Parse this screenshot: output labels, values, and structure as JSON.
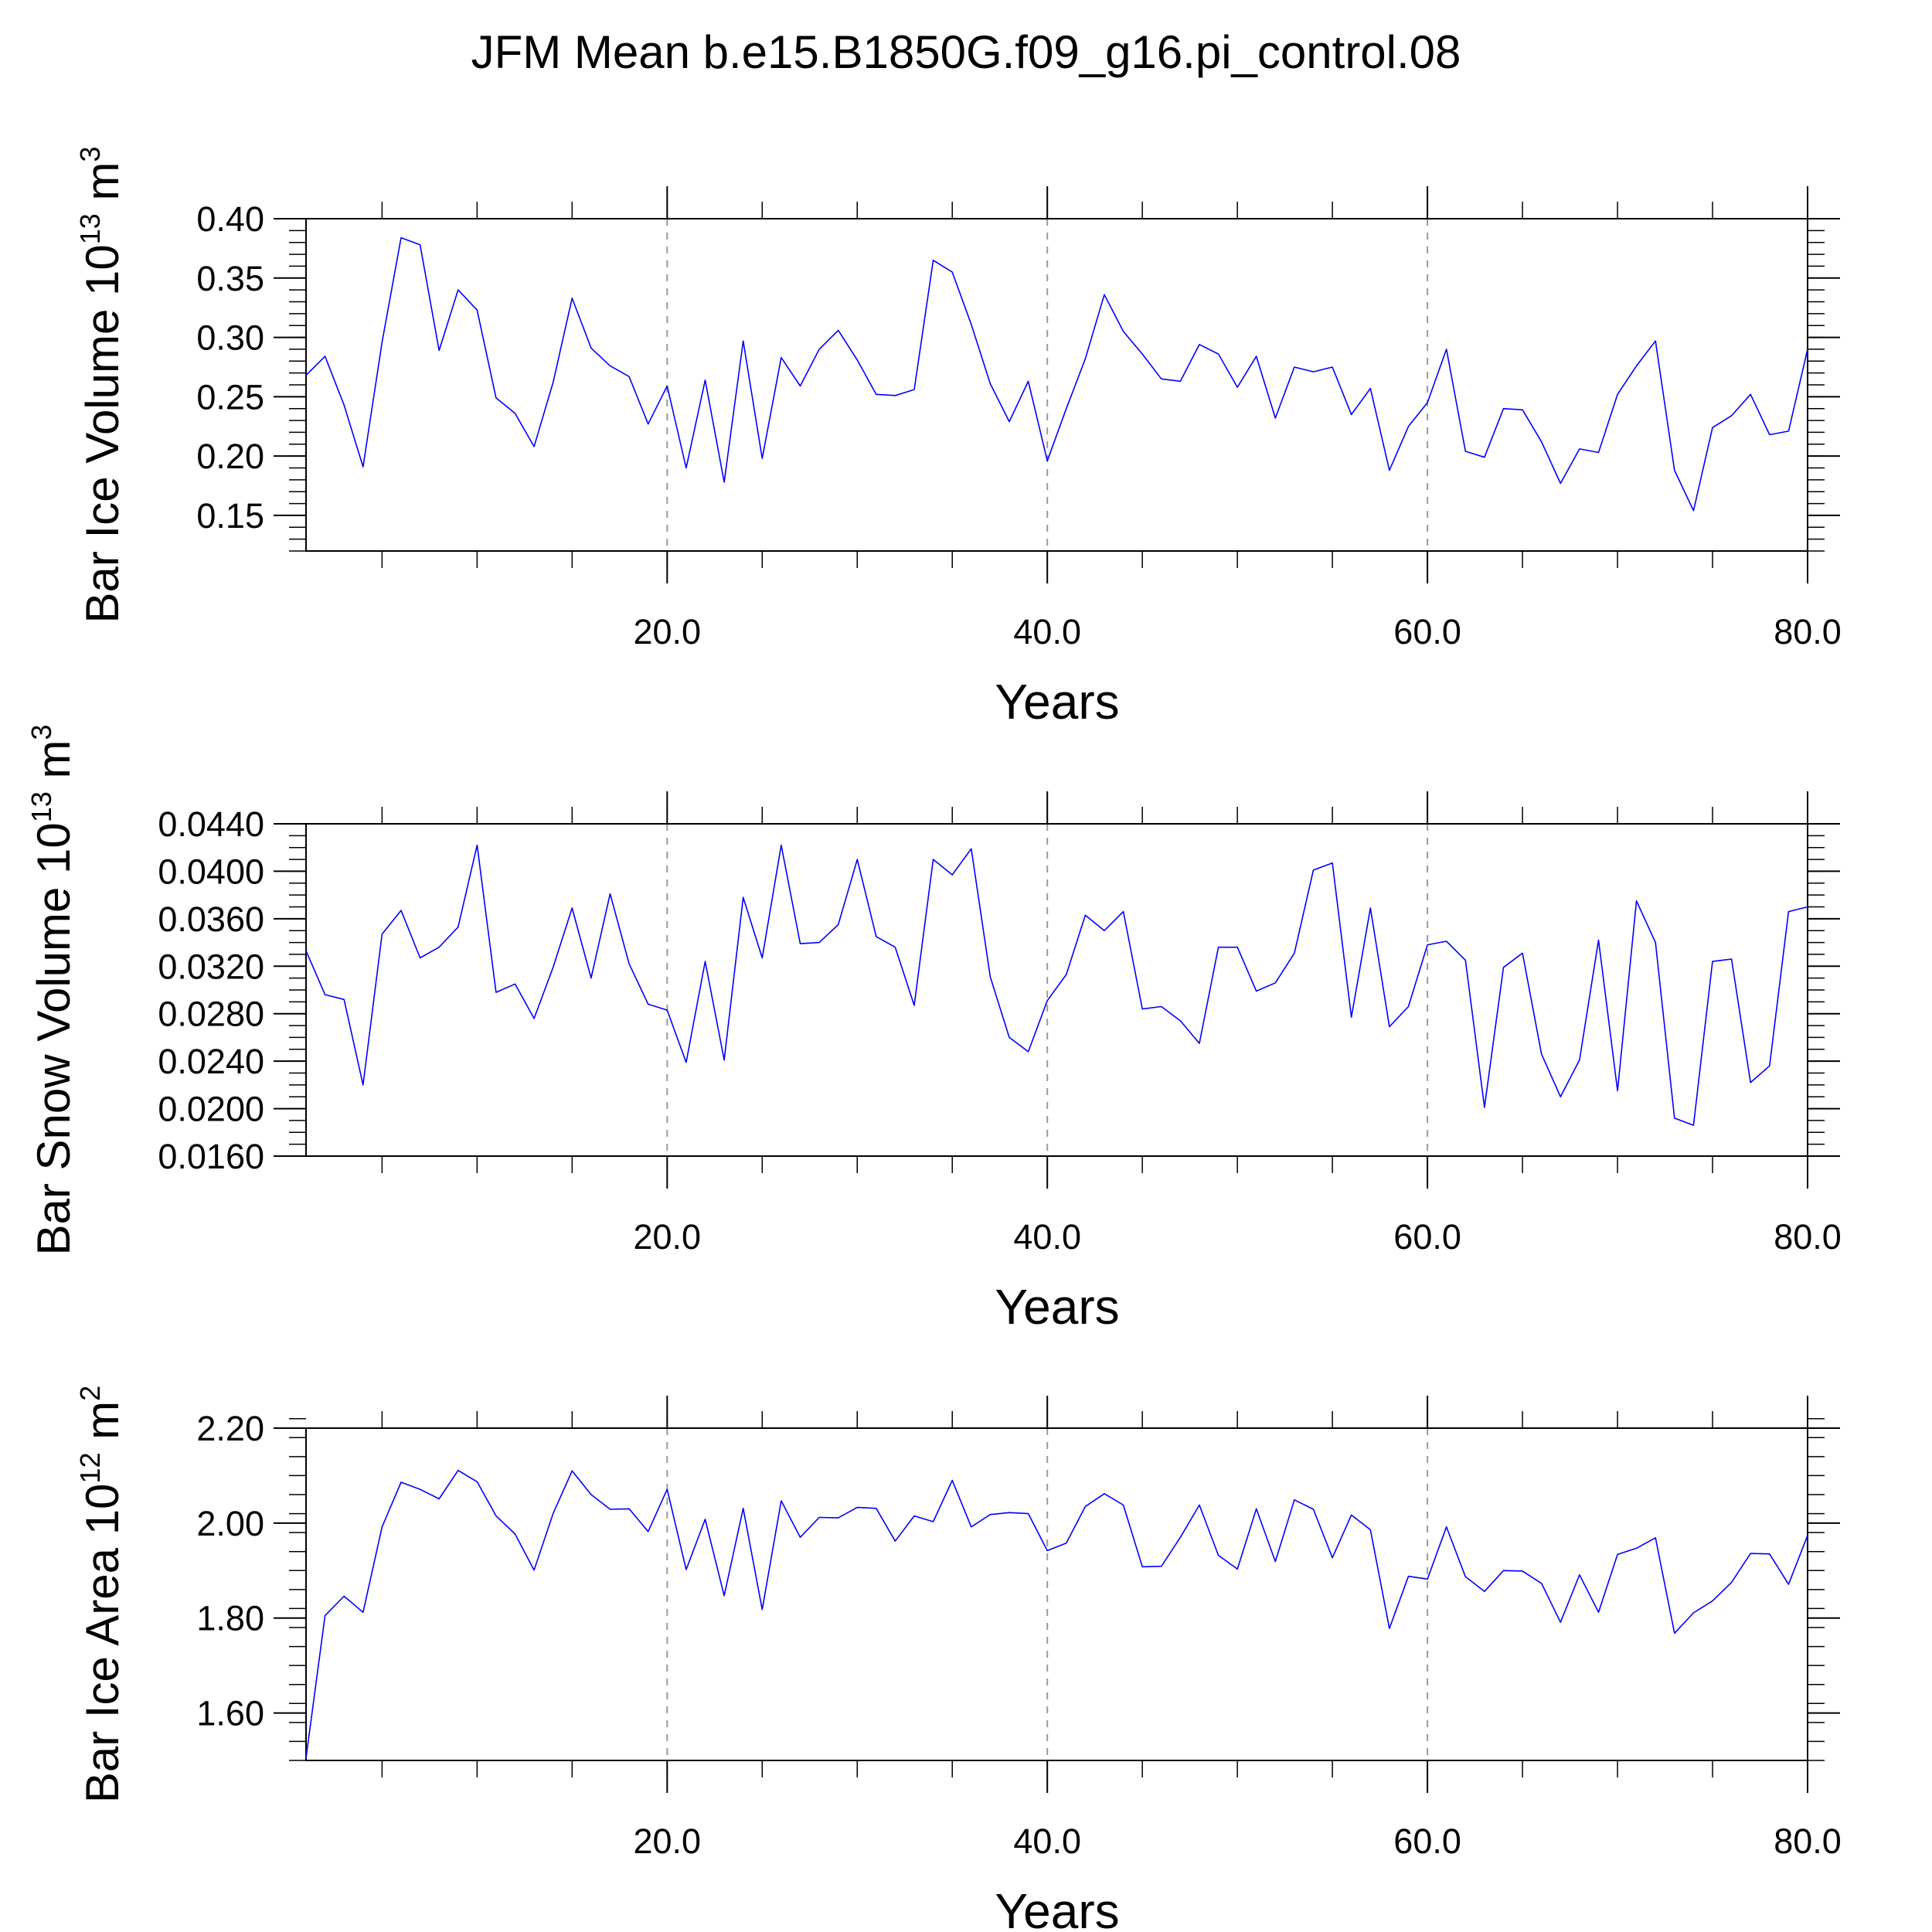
{
  "title": "JFM Mean b.e15.B1850G.f09_g16.pi_control.08",
  "x_tick_labels": [
    "20.0",
    "40.0",
    "60.0",
    "80.0"
  ],
  "chart_data": [
    {
      "type": "line",
      "title": "",
      "xlabel": "Years",
      "ylabel": {
        "name": "Bar Ice Volume 10",
        "exp": "13",
        "unit": " m",
        "unit_exp": "3"
      },
      "xlim": [
        1,
        80
      ],
      "ylim": [
        0.12,
        0.4
      ],
      "yticks": [
        0.15,
        0.2,
        0.25,
        0.3,
        0.35,
        0.4
      ],
      "ytick_labels": [
        "0.15",
        "0.20",
        "0.25",
        "0.30",
        "0.35",
        "0.40"
      ],
      "yminor_step": 0.01,
      "xticks": [
        20,
        40,
        60,
        80
      ],
      "xgrid_dashed": [
        20,
        40,
        60
      ],
      "line_color": "#0000ff",
      "x": [
        1,
        2,
        3,
        4,
        5,
        6,
        7,
        8,
        9,
        10,
        11,
        12,
        13,
        14,
        15,
        16,
        17,
        18,
        19,
        20,
        21,
        22,
        23,
        24,
        25,
        26,
        27,
        28,
        29,
        30,
        31,
        32,
        33,
        34,
        35,
        36,
        37,
        38,
        39,
        40,
        41,
        42,
        43,
        44,
        45,
        46,
        47,
        48,
        49,
        50,
        51,
        52,
        53,
        54,
        55,
        56,
        57,
        58,
        59,
        60,
        61,
        62,
        63,
        64,
        65,
        66,
        67,
        68,
        69,
        70,
        71,
        72,
        73,
        74,
        75,
        76,
        77,
        78,
        79,
        80
      ],
      "values": [
        0.268,
        0.284,
        0.243,
        0.191,
        0.296,
        0.384,
        0.378,
        0.289,
        0.34,
        0.323,
        0.249,
        0.236,
        0.208,
        0.262,
        0.333,
        0.291,
        0.276,
        0.267,
        0.227,
        0.259,
        0.19,
        0.264,
        0.178,
        0.297,
        0.198,
        0.283,
        0.259,
        0.29,
        0.306,
        0.281,
        0.252,
        0.251,
        0.256,
        0.365,
        0.355,
        0.311,
        0.261,
        0.229,
        0.263,
        0.196,
        0.24,
        0.282,
        0.336,
        0.305,
        0.286,
        0.265,
        0.263,
        0.294,
        0.286,
        0.258,
        0.284,
        0.232,
        0.275,
        0.271,
        0.275,
        0.235,
        0.257,
        0.188,
        0.225,
        0.245,
        0.29,
        0.204,
        0.199,
        0.24,
        0.239,
        0.212,
        0.177,
        0.206,
        0.203,
        0.252,
        0.276,
        0.297,
        0.188,
        0.154,
        0.224,
        0.234,
        0.252,
        0.218,
        0.221,
        0.29
      ]
    },
    {
      "type": "line",
      "title": "",
      "xlabel": "Years",
      "ylabel": {
        "name": "Bar Snow Volume 10",
        "exp": "13",
        "unit": " m",
        "unit_exp": "3"
      },
      "xlim": [
        1,
        80
      ],
      "ylim": [
        0.016,
        0.044
      ],
      "yticks": [
        0.016,
        0.02,
        0.024,
        0.028,
        0.032,
        0.036,
        0.04,
        0.044
      ],
      "ytick_labels": [
        "0.0160",
        "0.0200",
        "0.0240",
        "0.0280",
        "0.0320",
        "0.0360",
        "0.0400",
        "0.0440"
      ],
      "yminor_step": 0.001,
      "xticks": [
        20,
        40,
        60,
        80
      ],
      "xgrid_dashed": [
        20,
        40,
        60
      ],
      "line_color": "#0000ff",
      "x": [
        1,
        2,
        3,
        4,
        5,
        6,
        7,
        8,
        9,
        10,
        11,
        12,
        13,
        14,
        15,
        16,
        17,
        18,
        19,
        20,
        21,
        22,
        23,
        24,
        25,
        26,
        27,
        28,
        29,
        30,
        31,
        32,
        33,
        34,
        35,
        36,
        37,
        38,
        39,
        40,
        41,
        42,
        43,
        44,
        45,
        46,
        47,
        48,
        49,
        50,
        51,
        52,
        53,
        54,
        55,
        56,
        57,
        58,
        59,
        60,
        61,
        62,
        63,
        64,
        65,
        66,
        67,
        68,
        69,
        70,
        71,
        72,
        73,
        74,
        75,
        76,
        77,
        78,
        79,
        80
      ],
      "values": [
        0.0333,
        0.0296,
        0.0292,
        0.022,
        0.0347,
        0.0367,
        0.0327,
        0.0336,
        0.0353,
        0.0422,
        0.0298,
        0.0305,
        0.0276,
        0.0319,
        0.0369,
        0.031,
        0.0381,
        0.0322,
        0.0288,
        0.0283,
        0.0239,
        0.0324,
        0.0241,
        0.0378,
        0.0327,
        0.0422,
        0.0339,
        0.034,
        0.0355,
        0.041,
        0.0345,
        0.0336,
        0.0287,
        0.041,
        0.0397,
        0.0419,
        0.0311,
        0.026,
        0.0248,
        0.0291,
        0.0313,
        0.0363,
        0.035,
        0.0366,
        0.0284,
        0.0286,
        0.0274,
        0.0255,
        0.0336,
        0.0336,
        0.0299,
        0.0306,
        0.0331,
        0.0401,
        0.0407,
        0.0277,
        0.0369,
        0.0269,
        0.0286,
        0.0338,
        0.0341,
        0.0325,
        0.0201,
        0.0319,
        0.0331,
        0.0246,
        0.021,
        0.0241,
        0.0342,
        0.0215,
        0.0375,
        0.034,
        0.0192,
        0.0186,
        0.0324,
        0.0326,
        0.0222,
        0.0236,
        0.0366,
        0.037
      ]
    },
    {
      "type": "line",
      "title": "",
      "xlabel": "Years",
      "ylabel": {
        "name": "Bar Ice Area 10",
        "exp": "12",
        "unit": " m",
        "unit_exp": "2"
      },
      "xlim": [
        1,
        80
      ],
      "ylim": [
        1.5,
        2.2
      ],
      "yticks": [
        1.6,
        1.8,
        2.0,
        2.2
      ],
      "ytick_labels": [
        "1.60",
        "1.80",
        "2.00",
        "2.20"
      ],
      "yminor_step": 0.04,
      "xticks": [
        20,
        40,
        60,
        80
      ],
      "xgrid_dashed": [
        20,
        40,
        60
      ],
      "line_color": "#0000ff",
      "x": [
        1,
        2,
        3,
        4,
        5,
        6,
        7,
        8,
        9,
        10,
        11,
        12,
        13,
        14,
        15,
        16,
        17,
        18,
        19,
        20,
        21,
        22,
        23,
        24,
        25,
        26,
        27,
        28,
        29,
        30,
        31,
        32,
        33,
        34,
        35,
        36,
        37,
        38,
        39,
        40,
        41,
        42,
        43,
        44,
        45,
        46,
        47,
        48,
        49,
        50,
        51,
        52,
        53,
        54,
        55,
        56,
        57,
        58,
        59,
        60,
        61,
        62,
        63,
        64,
        65,
        66,
        67,
        68,
        69,
        70,
        71,
        72,
        73,
        74,
        75,
        76,
        77,
        78,
        79,
        80
      ],
      "values": [
        1.505,
        1.805,
        1.846,
        1.812,
        1.992,
        2.086,
        2.071,
        2.051,
        2.111,
        2.087,
        2.015,
        1.977,
        1.901,
        2.02,
        2.11,
        2.06,
        2.029,
        2.03,
        1.982,
        2.071,
        1.902,
        2.008,
        1.847,
        2.031,
        1.818,
        2.047,
        1.97,
        2.012,
        2.011,
        2.033,
        2.031,
        1.962,
        2.015,
        2.003,
        2.09,
        1.992,
        2.018,
        2.022,
        2.02,
        1.942,
        1.958,
        2.035,
        2.062,
        2.038,
        1.908,
        1.909,
        1.97,
        2.038,
        1.932,
        1.903,
        2.03,
        1.919,
        2.049,
        2.029,
        1.927,
        2.017,
        1.986,
        1.778,
        1.888,
        1.882,
        1.992,
        1.887,
        1.856,
        1.9,
        1.899,
        1.873,
        1.791,
        1.891,
        1.812,
        1.934,
        1.947,
        1.969,
        1.768,
        1.811,
        1.836,
        1.875,
        1.936,
        1.935,
        1.871,
        1.974
      ]
    }
  ]
}
